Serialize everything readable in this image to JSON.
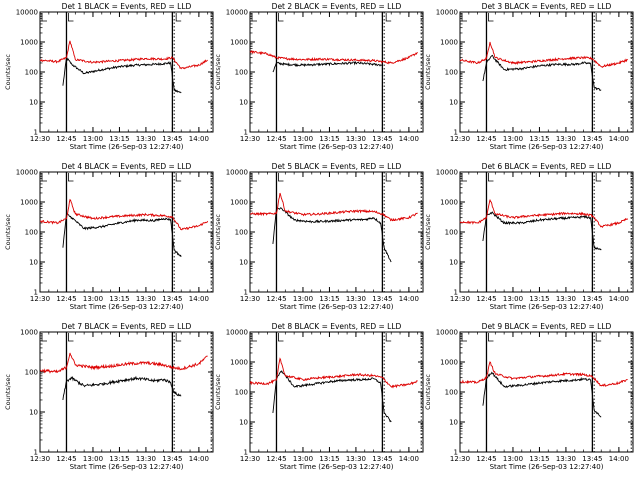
{
  "chart_data": [
    {
      "type": "line",
      "title": "Det 1  BLACK = Events, RED = LLD",
      "xlabel": "Start Time (26-Sep-03 12:27:40)",
      "ylabel": "Counts/sec",
      "y_scale": "log",
      "ylim": [
        1,
        10000
      ],
      "xlim": [
        "12:30",
        "14:08"
      ],
      "xticks": [
        "12:30",
        "12:45",
        "13:00",
        "13:15",
        "13:30",
        "13:45",
        "14:00"
      ],
      "yticks": [
        "1",
        "10",
        "100",
        "1000",
        "10000"
      ],
      "marker_lines": [
        {
          "time": "12:45",
          "style": "solid"
        },
        {
          "time": "13:45",
          "style": "solid"
        },
        {
          "time": "13:46",
          "style": "dotted"
        },
        {
          "time": "14:07",
          "style": "dotted"
        }
      ],
      "series": [
        {
          "color": "#000000",
          "x": [
            "12:43",
            "12:45",
            "12:48",
            "12:55",
            "13:05",
            "13:15",
            "13:25",
            "13:35",
            "13:40",
            "13:44",
            "13:46",
            "13:50"
          ],
          "y": [
            35,
            300,
            180,
            90,
            120,
            150,
            170,
            180,
            190,
            200,
            25,
            20
          ]
        },
        {
          "color": "#dd0000",
          "x": [
            "12:30",
            "12:40",
            "12:45",
            "12:47",
            "12:50",
            "13:00",
            "13:10",
            "13:20",
            "13:30",
            "13:40",
            "13:45",
            "13:50",
            "14:00",
            "14:05"
          ],
          "y": [
            250,
            220,
            300,
            1100,
            260,
            210,
            230,
            250,
            280,
            270,
            300,
            130,
            170,
            250
          ]
        }
      ]
    },
    {
      "type": "line",
      "title": "Det 2  BLACK = Events, RED = LLD",
      "xlabel": "Start Time (26-Sep-03 12:27:40)",
      "ylabel": "Counts/sec",
      "y_scale": "log",
      "ylim": [
        1,
        10000
      ],
      "xlim": [
        "12:30",
        "14:08"
      ],
      "xticks": [
        "12:30",
        "12:45",
        "13:00",
        "13:15",
        "13:30",
        "13:45",
        "14:00"
      ],
      "yticks": [
        "1",
        "10",
        "100",
        "1000",
        "10000"
      ],
      "marker_lines": [
        {
          "time": "12:45",
          "style": "solid"
        },
        {
          "time": "13:45",
          "style": "solid"
        },
        {
          "time": "13:46",
          "style": "dotted"
        },
        {
          "time": "14:07",
          "style": "dotted"
        }
      ],
      "series": [
        {
          "color": "#000000",
          "x": [
            "12:43",
            "12:45",
            "12:50",
            "13:00",
            "13:10",
            "13:20",
            "13:30",
            "13:40",
            "13:45"
          ],
          "y": [
            100,
            200,
            180,
            170,
            180,
            190,
            200,
            180,
            170
          ]
        },
        {
          "color": "#dd0000",
          "x": [
            "12:30",
            "12:40",
            "12:45",
            "12:50",
            "13:00",
            "13:10",
            "13:20",
            "13:30",
            "13:40",
            "13:45",
            "13:50",
            "14:00",
            "14:05"
          ],
          "y": [
            480,
            400,
            300,
            280,
            260,
            270,
            260,
            250,
            240,
            220,
            200,
            300,
            450
          ]
        }
      ]
    },
    {
      "type": "line",
      "title": "Det 3  BLACK = Events, RED = LLD",
      "xlabel": "Start Time (26-Sep-03 12:27:40)",
      "ylabel": "Counts/sec",
      "y_scale": "log",
      "ylim": [
        1,
        10000
      ],
      "xlim": [
        "12:30",
        "14:08"
      ],
      "xticks": [
        "12:30",
        "12:45",
        "13:00",
        "13:15",
        "13:30",
        "13:45",
        "14:00"
      ],
      "yticks": [
        "1",
        "10",
        "100",
        "1000",
        "10000"
      ],
      "marker_lines": [
        {
          "time": "12:45",
          "style": "solid"
        },
        {
          "time": "13:45",
          "style": "solid"
        },
        {
          "time": "13:46",
          "style": "dotted"
        },
        {
          "time": "14:07",
          "style": "dotted"
        }
      ],
      "series": [
        {
          "color": "#000000",
          "x": [
            "12:43",
            "12:45",
            "12:48",
            "12:55",
            "13:05",
            "13:15",
            "13:25",
            "13:35",
            "13:40",
            "13:44",
            "13:46",
            "13:50"
          ],
          "y": [
            50,
            200,
            350,
            120,
            130,
            160,
            180,
            180,
            200,
            190,
            30,
            25
          ]
        },
        {
          "color": "#dd0000",
          "x": [
            "12:30",
            "12:40",
            "12:45",
            "12:47",
            "12:50",
            "13:00",
            "13:10",
            "13:20",
            "13:30",
            "13:40",
            "13:45",
            "13:50",
            "14:00",
            "14:05"
          ],
          "y": [
            250,
            200,
            280,
            1000,
            300,
            200,
            220,
            250,
            280,
            300,
            280,
            150,
            200,
            260
          ]
        }
      ]
    },
    {
      "type": "line",
      "title": "Det 4  BLACK = Events, RED = LLD",
      "xlabel": "Start Time (26-Sep-03 12:27:40)",
      "ylabel": "Counts/sec",
      "y_scale": "log",
      "ylim": [
        1,
        10000
      ],
      "xlim": [
        "12:30",
        "14:08"
      ],
      "xticks": [
        "12:30",
        "12:45",
        "13:00",
        "13:15",
        "13:30",
        "13:45",
        "14:00"
      ],
      "yticks": [
        "1",
        "10",
        "100",
        "1000",
        "10000"
      ],
      "marker_lines": [
        {
          "time": "12:45",
          "style": "solid"
        },
        {
          "time": "13:45",
          "style": "solid"
        },
        {
          "time": "13:46",
          "style": "dotted"
        },
        {
          "time": "14:07",
          "style": "dotted"
        }
      ],
      "series": [
        {
          "color": "#000000",
          "x": [
            "12:43",
            "12:45",
            "12:48",
            "12:55",
            "13:05",
            "13:15",
            "13:25",
            "13:35",
            "13:40",
            "13:44",
            "13:46",
            "13:50"
          ],
          "y": [
            30,
            400,
            300,
            130,
            150,
            200,
            250,
            240,
            280,
            260,
            25,
            15
          ]
        },
        {
          "color": "#dd0000",
          "x": [
            "12:30",
            "12:40",
            "12:45",
            "12:47",
            "12:50",
            "13:00",
            "13:10",
            "13:20",
            "13:30",
            "13:40",
            "13:45",
            "13:50",
            "14:00",
            "14:05"
          ],
          "y": [
            230,
            200,
            280,
            1200,
            400,
            280,
            320,
            350,
            380,
            350,
            320,
            120,
            160,
            230
          ]
        }
      ]
    },
    {
      "type": "line",
      "title": "Det 5  BLACK = Events, RED = LLD",
      "xlabel": "Start Time (26-Sep-03 12:27:40)",
      "ylabel": "Counts/sec",
      "y_scale": "log",
      "ylim": [
        1,
        10000
      ],
      "xlim": [
        "12:30",
        "14:08"
      ],
      "xticks": [
        "12:30",
        "12:45",
        "13:00",
        "13:15",
        "13:30",
        "13:45",
        "14:00"
      ],
      "yticks": [
        "1",
        "10",
        "100",
        "1000",
        "10000"
      ],
      "marker_lines": [
        {
          "time": "12:45",
          "style": "solid"
        },
        {
          "time": "13:45",
          "style": "solid"
        },
        {
          "time": "13:46",
          "style": "dotted"
        },
        {
          "time": "14:07",
          "style": "dotted"
        }
      ],
      "series": [
        {
          "color": "#000000",
          "x": [
            "12:43",
            "12:45",
            "12:48",
            "12:55",
            "13:05",
            "13:15",
            "13:25",
            "13:35",
            "13:40",
            "13:44",
            "13:46",
            "13:50"
          ],
          "y": [
            40,
            600,
            600,
            250,
            220,
            230,
            250,
            260,
            300,
            200,
            30,
            10
          ]
        },
        {
          "color": "#dd0000",
          "x": [
            "12:30",
            "12:40",
            "12:45",
            "12:47",
            "12:50",
            "13:00",
            "13:10",
            "13:20",
            "13:30",
            "13:40",
            "13:45",
            "13:50",
            "14:00",
            "14:05"
          ],
          "y": [
            400,
            400,
            420,
            2000,
            500,
            380,
            400,
            450,
            500,
            480,
            400,
            250,
            300,
            420
          ]
        }
      ]
    },
    {
      "type": "line",
      "title": "Det 6  BLACK = Events, RED = LLD",
      "xlabel": "Start Time (26-Sep-03 12:27:40)",
      "ylabel": "Counts/sec",
      "y_scale": "log",
      "ylim": [
        1,
        10000
      ],
      "xlim": [
        "12:30",
        "14:08"
      ],
      "xticks": [
        "12:30",
        "12:45",
        "13:00",
        "13:15",
        "13:30",
        "13:45",
        "14:00"
      ],
      "yticks": [
        "1",
        "10",
        "100",
        "1000",
        "10000"
      ],
      "marker_lines": [
        {
          "time": "12:45",
          "style": "solid"
        },
        {
          "time": "13:45",
          "style": "solid"
        },
        {
          "time": "13:46",
          "style": "dotted"
        },
        {
          "time": "14:07",
          "style": "dotted"
        }
      ],
      "series": [
        {
          "color": "#000000",
          "x": [
            "12:43",
            "12:45",
            "12:48",
            "12:55",
            "13:05",
            "13:15",
            "13:25",
            "13:35",
            "13:40",
            "13:44",
            "13:46",
            "13:50"
          ],
          "y": [
            50,
            350,
            450,
            200,
            200,
            250,
            280,
            300,
            320,
            300,
            30,
            25
          ]
        },
        {
          "color": "#dd0000",
          "x": [
            "12:30",
            "12:40",
            "12:45",
            "12:47",
            "12:50",
            "13:00",
            "13:10",
            "13:20",
            "13:30",
            "13:40",
            "13:45",
            "13:50",
            "14:00",
            "14:05"
          ],
          "y": [
            220,
            200,
            300,
            1200,
            400,
            300,
            350,
            380,
            420,
            400,
            350,
            150,
            200,
            280
          ]
        }
      ]
    },
    {
      "type": "line",
      "title": "Det 7  BLACK = Events, RED = LLD",
      "xlabel": "Start Time (26-Sep-03 12:27:40)",
      "ylabel": "Counts/sec",
      "y_scale": "log",
      "ylim": [
        1,
        1000
      ],
      "xlim": [
        "12:30",
        "14:08"
      ],
      "xticks": [
        "12:30",
        "12:45",
        "13:00",
        "13:15",
        "13:30",
        "13:45",
        "14:00"
      ],
      "yticks": [
        "1",
        "10",
        "100",
        "1000"
      ],
      "marker_lines": [
        {
          "time": "12:45",
          "style": "solid"
        },
        {
          "time": "13:45",
          "style": "solid"
        },
        {
          "time": "13:46",
          "style": "dotted"
        },
        {
          "time": "14:07",
          "style": "dotted"
        }
      ],
      "series": [
        {
          "color": "#000000",
          "x": [
            "12:43",
            "12:45",
            "12:48",
            "12:55",
            "13:05",
            "13:15",
            "13:25",
            "13:35",
            "13:40",
            "13:44",
            "13:46",
            "13:50"
          ],
          "y": [
            20,
            60,
            70,
            45,
            50,
            60,
            70,
            60,
            65,
            55,
            30,
            25
          ]
        },
        {
          "color": "#dd0000",
          "x": [
            "12:30",
            "12:40",
            "12:45",
            "12:47",
            "12:50",
            "13:00",
            "13:10",
            "13:20",
            "13:30",
            "13:40",
            "13:45",
            "13:50",
            "14:00",
            "14:05"
          ],
          "y": [
            110,
            100,
            130,
            300,
            150,
            130,
            140,
            160,
            170,
            150,
            130,
            120,
            160,
            250
          ]
        }
      ]
    },
    {
      "type": "line",
      "title": "Det 8  BLACK = Events, RED = LLD",
      "xlabel": "Start Time (26-Sep-03 12:27:40)",
      "ylabel": "Counts/sec",
      "y_scale": "log",
      "ylim": [
        1,
        10000
      ],
      "xlim": [
        "12:30",
        "14:08"
      ],
      "xticks": [
        "12:30",
        "12:45",
        "13:00",
        "13:15",
        "13:30",
        "13:45",
        "14:00"
      ],
      "yticks": [
        "1",
        "10",
        "100",
        "1000",
        "10000"
      ],
      "marker_lines": [
        {
          "time": "12:45",
          "style": "solid"
        },
        {
          "time": "13:45",
          "style": "solid"
        },
        {
          "time": "13:46",
          "style": "dotted"
        },
        {
          "time": "14:07",
          "style": "dotted"
        }
      ],
      "series": [
        {
          "color": "#000000",
          "x": [
            "12:43",
            "12:45",
            "12:48",
            "12:55",
            "13:05",
            "13:15",
            "13:25",
            "13:35",
            "13:40",
            "13:44",
            "13:46",
            "13:50"
          ],
          "y": [
            20,
            300,
            500,
            150,
            180,
            220,
            250,
            260,
            280,
            200,
            20,
            10
          ]
        },
        {
          "color": "#dd0000",
          "x": [
            "12:30",
            "12:40",
            "12:45",
            "12:47",
            "12:50",
            "13:00",
            "13:10",
            "13:20",
            "13:30",
            "13:40",
            "13:45",
            "13:50",
            "14:00",
            "14:05"
          ],
          "y": [
            200,
            190,
            250,
            1300,
            350,
            260,
            300,
            330,
            380,
            350,
            300,
            150,
            180,
            230
          ]
        }
      ]
    },
    {
      "type": "line",
      "title": "Det 9  BLACK = Events, RED = LLD",
      "xlabel": "Start Time (26-Sep-03 12:27:40)",
      "ylabel": "Counts/sec",
      "y_scale": "log",
      "ylim": [
        1,
        10000
      ],
      "xlim": [
        "12:30",
        "14:08"
      ],
      "xticks": [
        "12:30",
        "12:45",
        "13:00",
        "13:15",
        "13:30",
        "13:45",
        "14:00"
      ],
      "yticks": [
        "1",
        "10",
        "100",
        "1000",
        "10000"
      ],
      "marker_lines": [
        {
          "time": "12:45",
          "style": "solid"
        },
        {
          "time": "13:45",
          "style": "solid"
        },
        {
          "time": "13:46",
          "style": "dotted"
        },
        {
          "time": "14:07",
          "style": "dotted"
        }
      ],
      "series": [
        {
          "color": "#000000",
          "x": [
            "12:43",
            "12:45",
            "12:48",
            "12:55",
            "13:05",
            "13:15",
            "13:25",
            "13:35",
            "13:40",
            "13:44",
            "13:46",
            "13:50"
          ],
          "y": [
            35,
            300,
            450,
            150,
            170,
            200,
            230,
            250,
            270,
            250,
            25,
            15
          ]
        },
        {
          "color": "#dd0000",
          "x": [
            "12:30",
            "12:40",
            "12:45",
            "12:47",
            "12:50",
            "13:00",
            "13:10",
            "13:20",
            "13:30",
            "13:40",
            "13:45",
            "13:50",
            "14:00",
            "14:05"
          ],
          "y": [
            220,
            210,
            300,
            1000,
            400,
            280,
            320,
            350,
            400,
            380,
            330,
            160,
            200,
            260
          ]
        }
      ]
    }
  ]
}
